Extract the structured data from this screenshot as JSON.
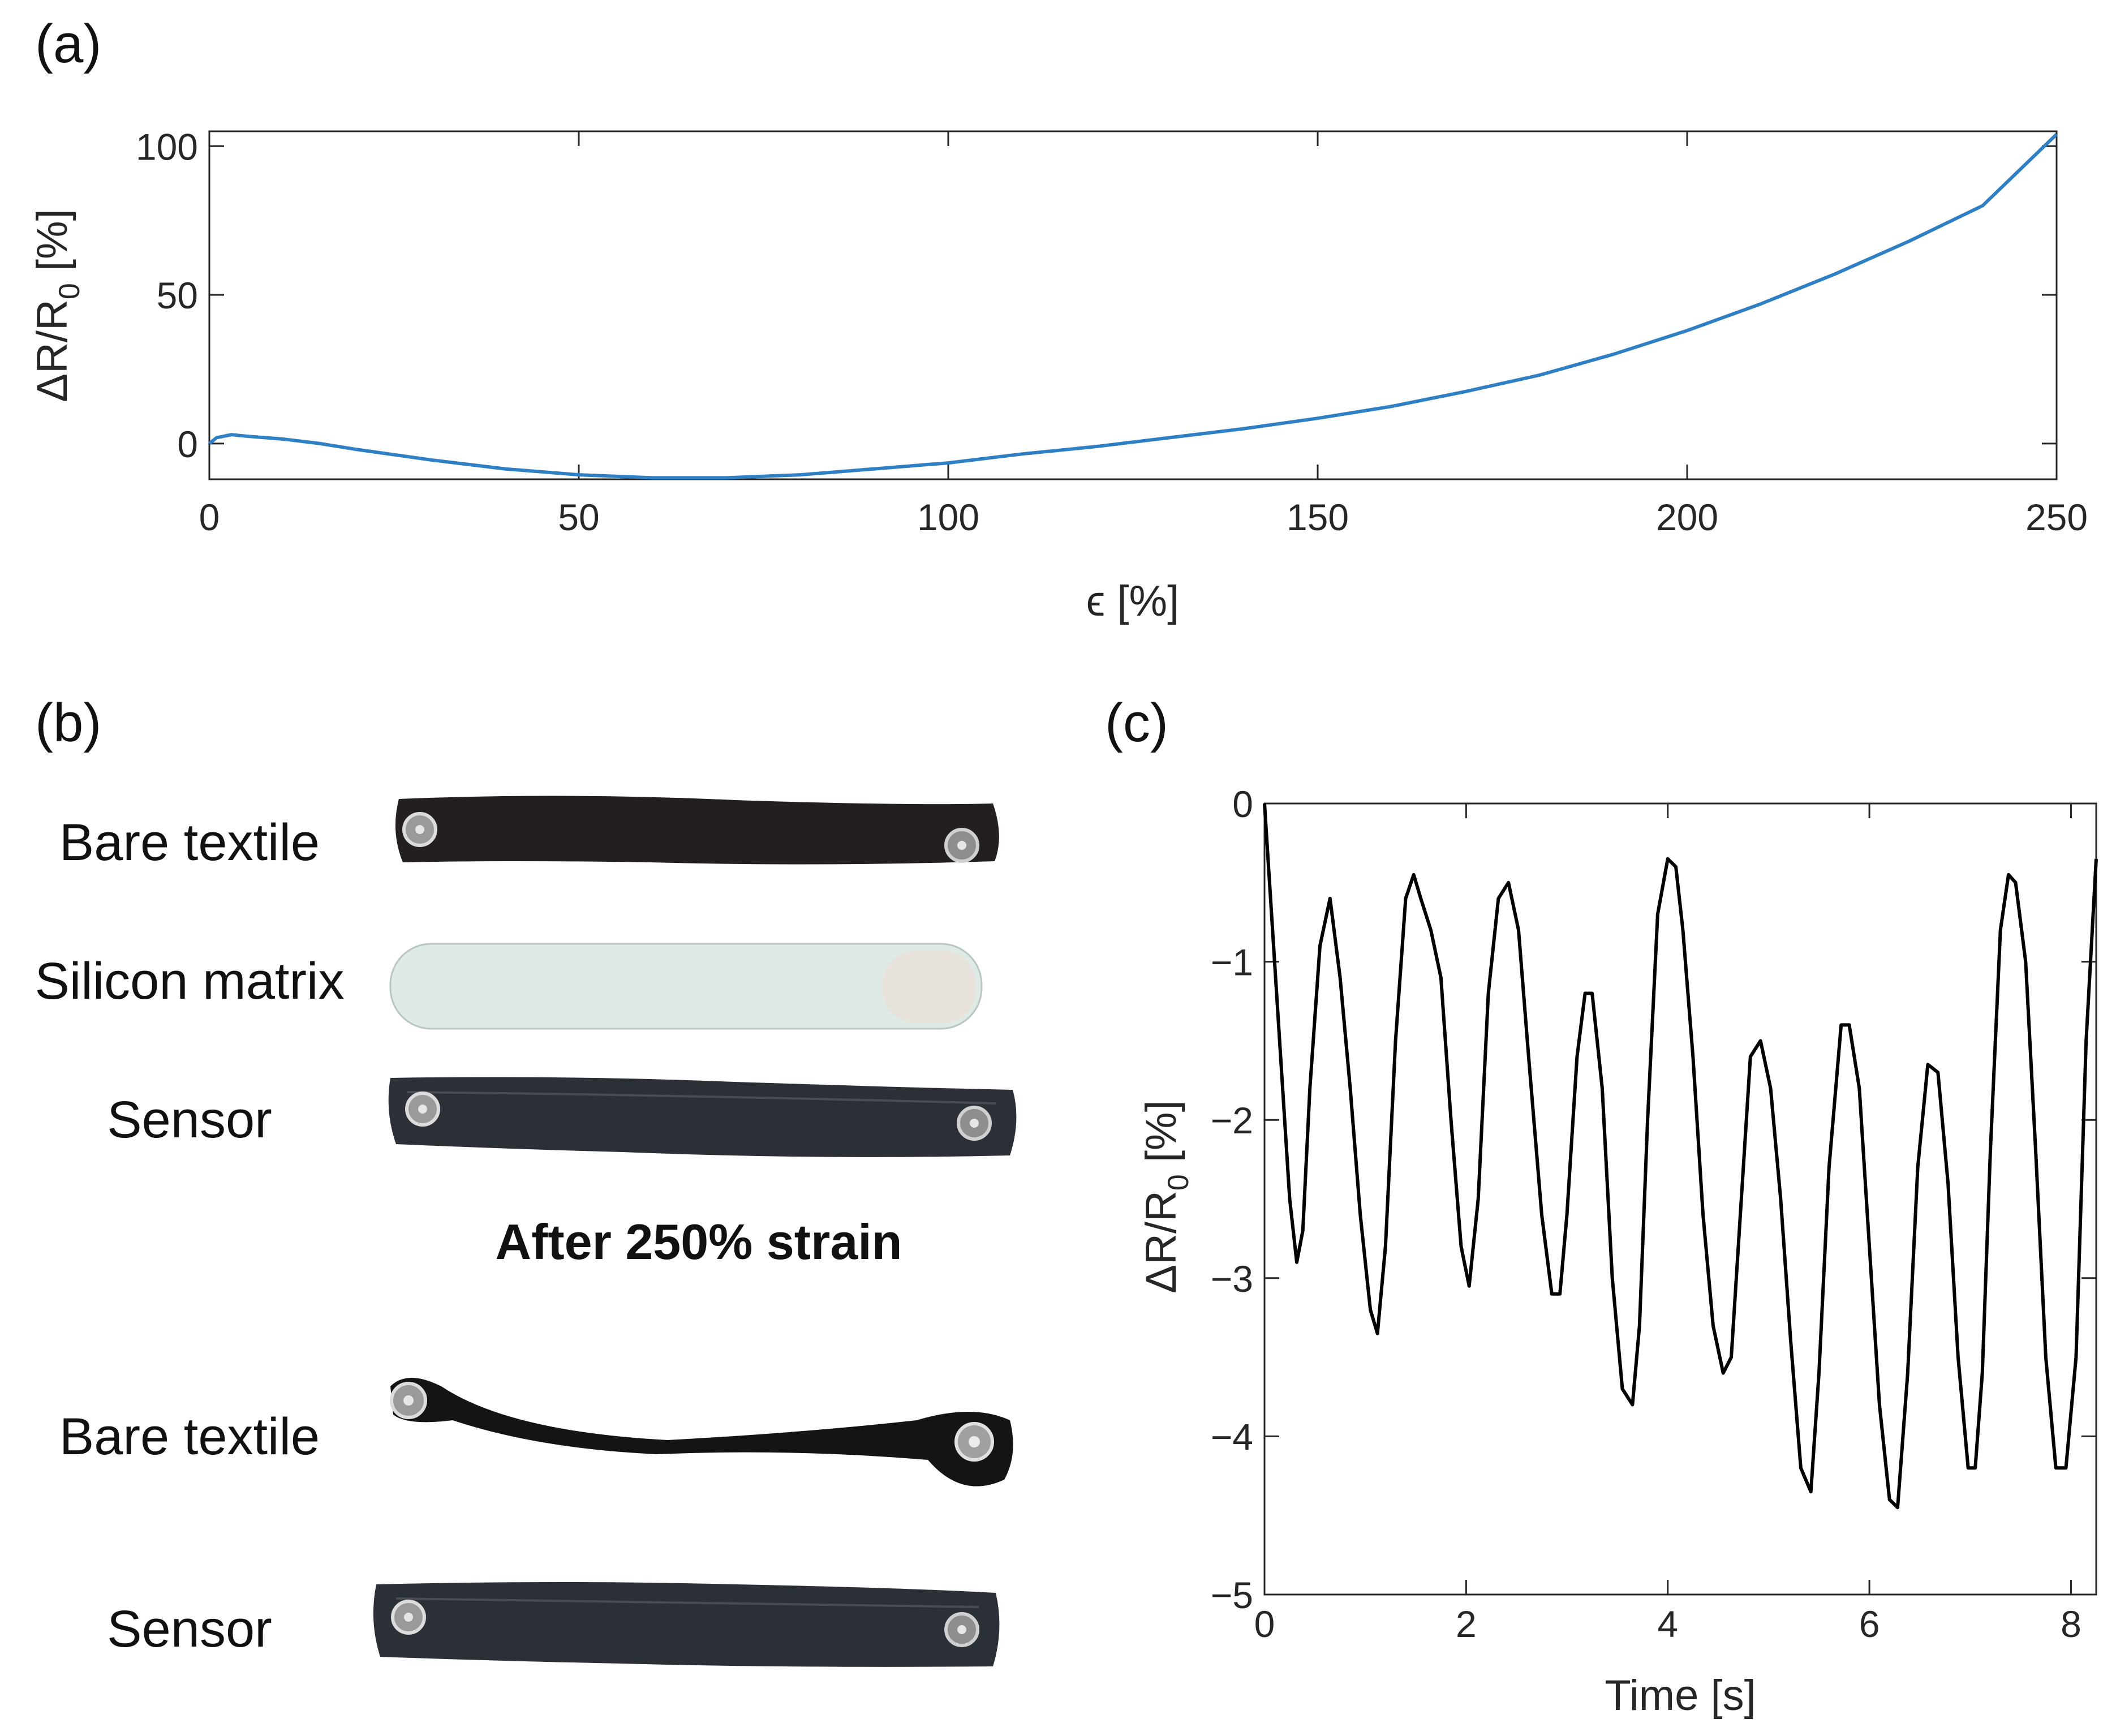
{
  "panels": {
    "a": "(a)",
    "b": "(b)",
    "c": "(c)"
  },
  "photos": {
    "labels": [
      "Bare textile",
      "Silicon matrix",
      "Sensor",
      "Bare textile",
      "Sensor"
    ],
    "after_title": "After 250% strain"
  },
  "chart_data": [
    {
      "id": "a",
      "type": "line",
      "xlabel": "ϵ [%]",
      "ylabel": "ΔR/R0 [%]",
      "ylabel_main": "ΔR/R",
      "ylabel_sub": "0",
      "ylabel_tail": " [%]",
      "xlim": [
        0,
        250
      ],
      "ylim": [
        -12,
        105
      ],
      "xticks": [
        "0",
        "50",
        "100",
        "150",
        "200",
        "250"
      ],
      "yticks": [
        "0",
        "50",
        "100"
      ],
      "color": "#2f7fc4",
      "grid": false,
      "x": [
        0,
        1,
        3,
        5,
        10,
        15,
        20,
        30,
        40,
        50,
        60,
        70,
        80,
        90,
        100,
        110,
        120,
        130,
        140,
        150,
        160,
        170,
        180,
        190,
        200,
        210,
        220,
        230,
        240,
        250
      ],
      "y": [
        0,
        2,
        3,
        2.5,
        1.5,
        0,
        -2,
        -5.5,
        -8.5,
        -10.5,
        -11.5,
        -11.5,
        -10.5,
        -8.5,
        -6.5,
        -3.5,
        -1,
        2,
        5,
        8.5,
        12.5,
        17.5,
        23,
        30,
        38,
        47,
        57,
        68,
        80,
        104
      ]
    },
    {
      "id": "c",
      "type": "line",
      "xlabel": "Time [s]",
      "ylabel": "ΔR/R0 [%]",
      "ylabel_main": "ΔR/R",
      "ylabel_sub": "0",
      "ylabel_tail": " [%]",
      "xlim": [
        0,
        8.25
      ],
      "ylim": [
        -5,
        0
      ],
      "xticks": [
        "0",
        "2",
        "4",
        "6",
        "8"
      ],
      "yticks": [
        "0",
        "-1",
        "-2",
        "-3",
        "-4",
        "-5"
      ],
      "color": "#000000",
      "grid": false,
      "x": [
        0,
        0.05,
        0.15,
        0.25,
        0.32,
        0.38,
        0.45,
        0.55,
        0.65,
        0.75,
        0.85,
        0.95,
        1.05,
        1.12,
        1.2,
        1.3,
        1.4,
        1.48,
        1.55,
        1.65,
        1.75,
        1.85,
        1.95,
        2.03,
        2.12,
        2.22,
        2.32,
        2.42,
        2.52,
        2.62,
        2.75,
        2.85,
        2.93,
        3.0,
        3.1,
        3.18,
        3.25,
        3.35,
        3.45,
        3.55,
        3.65,
        3.72,
        3.8,
        3.9,
        4.0,
        4.08,
        4.15,
        4.25,
        4.35,
        4.45,
        4.55,
        4.63,
        4.72,
        4.82,
        4.92,
        5.02,
        5.12,
        5.22,
        5.32,
        5.42,
        5.5,
        5.6,
        5.72,
        5.8,
        5.9,
        6.0,
        6.1,
        6.2,
        6.28,
        6.38,
        6.48,
        6.58,
        6.68,
        6.78,
        6.88,
        6.98,
        7.05,
        7.12,
        7.2,
        7.3,
        7.38,
        7.45,
        7.55,
        7.65,
        7.75,
        7.85,
        7.95,
        8.05,
        8.15,
        8.25
      ],
      "y": [
        0,
        -0.5,
        -1.5,
        -2.5,
        -2.9,
        -2.7,
        -1.8,
        -0.9,
        -0.6,
        -1.1,
        -1.8,
        -2.6,
        -3.2,
        -3.35,
        -2.8,
        -1.5,
        -0.6,
        -0.45,
        -0.6,
        -0.8,
        -1.1,
        -2.0,
        -2.8,
        -3.05,
        -2.5,
        -1.2,
        -0.6,
        -0.5,
        -0.8,
        -1.6,
        -2.6,
        -3.1,
        -3.1,
        -2.6,
        -1.6,
        -1.2,
        -1.2,
        -1.8,
        -3.0,
        -3.7,
        -3.8,
        -3.3,
        -2.0,
        -0.7,
        -0.35,
        -0.4,
        -0.8,
        -1.6,
        -2.6,
        -3.3,
        -3.6,
        -3.5,
        -2.6,
        -1.6,
        -1.5,
        -1.8,
        -2.5,
        -3.4,
        -4.2,
        -4.35,
        -3.6,
        -2.3,
        -1.4,
        -1.4,
        -1.8,
        -2.8,
        -3.8,
        -4.4,
        -4.45,
        -3.6,
        -2.3,
        -1.65,
        -1.7,
        -2.4,
        -3.5,
        -4.2,
        -4.2,
        -3.6,
        -2.2,
        -0.8,
        -0.45,
        -0.5,
        -1.0,
        -2.2,
        -3.5,
        -4.2,
        -4.2,
        -3.5,
        -1.5,
        -0.35
      ]
    }
  ]
}
